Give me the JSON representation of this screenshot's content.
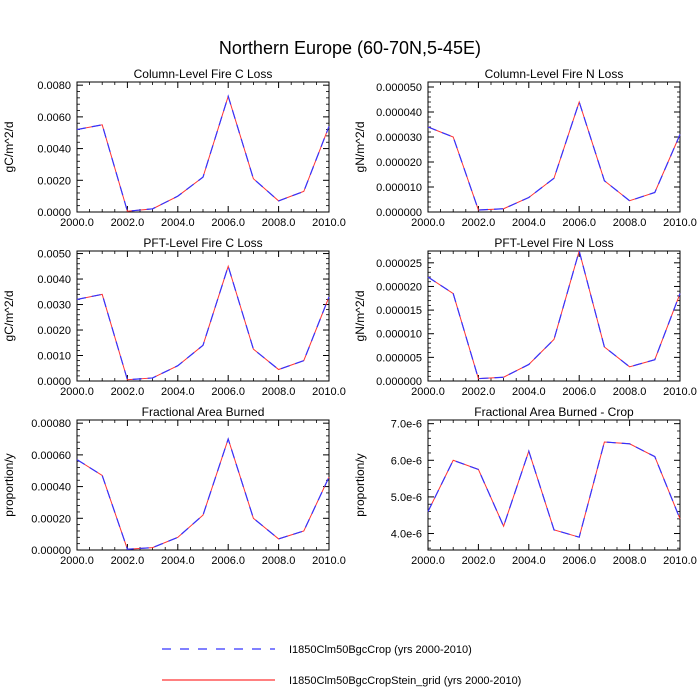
{
  "figure": {
    "title": "Northern Europe (60-70N,5-45E)"
  },
  "legend": [
    {
      "name": "I1850Clm50BgcCrop (yrs 2000-2010)",
      "color": "#0000ff",
      "style": "dashed"
    },
    {
      "name": "I1850Clm50BgcCropStein_grid (yrs 2000-2010)",
      "color": "#ff0000",
      "style": "solid"
    }
  ],
  "chart_data": [
    {
      "type": "line",
      "title": "Column-Level Fire C Loss",
      "ylabel": "gC/m^2/d",
      "xlim": [
        2000,
        2010
      ],
      "ylim": [
        0,
        0.0082
      ],
      "xticks": [
        "2000.0",
        "2002.0",
        "2004.0",
        "2006.0",
        "2008.0",
        "2010.0"
      ],
      "yticks": [
        "0.0000",
        "0.0020",
        "0.0040",
        "0.0060",
        "0.0080"
      ],
      "x": [
        2000,
        2001,
        2002,
        2003,
        2004,
        2005,
        2006,
        2007,
        2008,
        2009,
        2010
      ],
      "series": [
        {
          "name": "I1850Clm50BgcCrop (yrs 2000-2010)",
          "values": [
            0.0052,
            0.0055,
            5e-05,
            0.0002,
            0.001,
            0.0022,
            0.0073,
            0.0021,
            0.0007,
            0.0013,
            0.0054
          ]
        },
        {
          "name": "I1850Clm50BgcCropStein_grid (yrs 2000-2010)",
          "values": [
            0.0052,
            0.0055,
            5e-05,
            0.0002,
            0.001,
            0.0022,
            0.0073,
            0.0021,
            0.0007,
            0.0013,
            0.0054
          ]
        }
      ]
    },
    {
      "type": "line",
      "title": "Column-Level Fire N Loss",
      "ylabel": "gN/m^2/d",
      "xlim": [
        2000,
        2010
      ],
      "ylim": [
        0,
        5.2e-05
      ],
      "xticks": [
        "2000.0",
        "2002.0",
        "2004.0",
        "2006.0",
        "2008.0",
        "2010.0"
      ],
      "yticks": [
        "0.000000",
        "0.000010",
        "0.000020",
        "0.000030",
        "0.000040",
        "0.000050"
      ],
      "x": [
        2000,
        2001,
        2002,
        2003,
        2004,
        2005,
        2006,
        2007,
        2008,
        2009,
        2010
      ],
      "series": [
        {
          "name": "I1850Clm50BgcCrop (yrs 2000-2010)",
          "values": [
            3.4e-05,
            3e-05,
            8e-07,
            1.3e-06,
            5.8e-06,
            1.35e-05,
            4.4e-05,
            1.25e-05,
            4.5e-06,
            7.8e-06,
            3.1e-05
          ]
        },
        {
          "name": "I1850Clm50BgcCropStein_grid (yrs 2000-2010)",
          "values": [
            3.4e-05,
            3e-05,
            8e-07,
            1.3e-06,
            5.8e-06,
            1.35e-05,
            4.4e-05,
            1.25e-05,
            4.5e-06,
            7.8e-06,
            3.1e-05
          ]
        }
      ]
    },
    {
      "type": "line",
      "title": "PFT-Level Fire C Loss",
      "ylabel": "gC/m^2/d",
      "xlim": [
        2000,
        2010
      ],
      "ylim": [
        0,
        0.0051
      ],
      "xticks": [
        "2000.0",
        "2002.0",
        "2004.0",
        "2006.0",
        "2008.0",
        "2010.0"
      ],
      "yticks": [
        "0.0000",
        "0.0010",
        "0.0020",
        "0.0030",
        "0.0040",
        "0.0050"
      ],
      "x": [
        2000,
        2001,
        2002,
        2003,
        2004,
        2005,
        2006,
        2007,
        2008,
        2009,
        2010
      ],
      "series": [
        {
          "name": "I1850Clm50BgcCrop (yrs 2000-2010)",
          "values": [
            0.0032,
            0.0034,
            5e-05,
            0.00012,
            0.0006,
            0.0014,
            0.0045,
            0.00125,
            0.00045,
            0.0008,
            0.0033
          ]
        },
        {
          "name": "I1850Clm50BgcCropStein_grid (yrs 2000-2010)",
          "values": [
            0.0032,
            0.0034,
            5e-05,
            0.00012,
            0.0006,
            0.0014,
            0.0045,
            0.00125,
            0.00045,
            0.0008,
            0.0033
          ]
        }
      ]
    },
    {
      "type": "line",
      "title": "PFT-Level Fire N Loss",
      "ylabel": "gN/m^2/d",
      "xlim": [
        2000,
        2010
      ],
      "ylim": [
        0,
        2.75e-05
      ],
      "xticks": [
        "2000.0",
        "2002.0",
        "2004.0",
        "2006.0",
        "2008.0",
        "2010.0"
      ],
      "yticks": [
        "0.000000",
        "0.000005",
        "0.000010",
        "0.000015",
        "0.000020",
        "0.000025"
      ],
      "x": [
        2000,
        2001,
        2002,
        2003,
        2004,
        2005,
        2006,
        2007,
        2008,
        2009,
        2010
      ],
      "series": [
        {
          "name": "I1850Clm50BgcCrop (yrs 2000-2010)",
          "values": [
            2.2e-05,
            1.85e-05,
            5e-07,
            8e-07,
            3.5e-06,
            8.8e-06,
            2.75e-05,
            7.2e-06,
            3e-06,
            4.5e-06,
            1.85e-05
          ]
        },
        {
          "name": "I1850Clm50BgcCropStein_grid (yrs 2000-2010)",
          "values": [
            2.2e-05,
            1.85e-05,
            5e-07,
            8e-07,
            3.5e-06,
            8.8e-06,
            2.75e-05,
            7.2e-06,
            3e-06,
            4.5e-06,
            1.85e-05
          ]
        }
      ]
    },
    {
      "type": "line",
      "title": "Fractional Area Burned",
      "ylabel": "proportion/y",
      "xlim": [
        2000,
        2010
      ],
      "ylim": [
        0,
        0.00082
      ],
      "xticks": [
        "2000.0",
        "2002.0",
        "2004.0",
        "2006.0",
        "2008.0",
        "2010.0"
      ],
      "yticks": [
        "0.00000",
        "0.00020",
        "0.00040",
        "0.00060",
        "0.00080"
      ],
      "x": [
        2000,
        2001,
        2002,
        2003,
        2004,
        2005,
        2006,
        2007,
        2008,
        2009,
        2010
      ],
      "series": [
        {
          "name": "I1850Clm50BgcCrop (yrs 2000-2010)",
          "values": [
            0.00057,
            0.00047,
            5e-06,
            1.5e-05,
            8e-05,
            0.00022,
            0.0007,
            0.0002,
            7e-05,
            0.00012,
            0.00046
          ]
        },
        {
          "name": "I1850Clm50BgcCropStein_grid (yrs 2000-2010)",
          "values": [
            0.00057,
            0.00047,
            5e-06,
            1.5e-05,
            8e-05,
            0.00022,
            0.0007,
            0.0002,
            7e-05,
            0.00012,
            0.00046
          ]
        }
      ]
    },
    {
      "type": "line",
      "title": "Fractional Area Burned - Crop",
      "ylabel": "proportion/y",
      "xlim": [
        2000,
        2010
      ],
      "ylim": [
        3.55e-06,
        7.1e-06
      ],
      "xticks": [
        "2000.0",
        "2002.0",
        "2004.0",
        "2006.0",
        "2008.0",
        "2010.0"
      ],
      "yticks": [
        "4.0e-6",
        "5.0e-6",
        "6.0e-6",
        "7.0e-6"
      ],
      "x": [
        2000,
        2001,
        2002,
        2003,
        2004,
        2005,
        2006,
        2007,
        2008,
        2009,
        2010
      ],
      "series": [
        {
          "name": "I1850Clm50BgcCrop (yrs 2000-2010)",
          "values": [
            4.6e-06,
            6e-06,
            5.75e-06,
            4.2e-06,
            6.25e-06,
            4.1e-06,
            3.9e-06,
            6.5e-06,
            6.45e-06,
            6.1e-06,
            4.4e-06
          ]
        },
        {
          "name": "I1850Clm50BgcCropStein_grid (yrs 2000-2010)",
          "values": [
            4.6e-06,
            6e-06,
            5.75e-06,
            4.2e-06,
            6.25e-06,
            4.1e-06,
            3.9e-06,
            6.5e-06,
            6.45e-06,
            6.1e-06,
            4.4e-06
          ]
        }
      ]
    }
  ]
}
